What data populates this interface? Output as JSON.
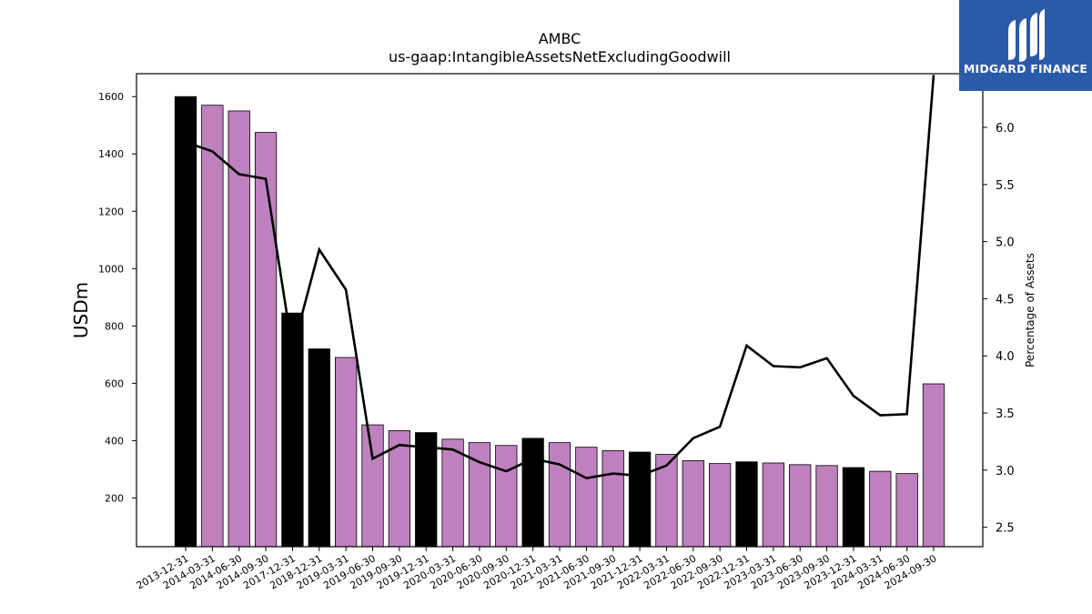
{
  "brand": {
    "name": "MIDGARD FINANCE",
    "bg_color": "#2b5aa8"
  },
  "chart_data": {
    "type": "bar+line",
    "title": "AMBC",
    "subtitle": "us-gaap:IntangibleAssetsNetExcludingGoodwill",
    "ylabel": "USDm",
    "y2label": "Percentage of Assets",
    "ylim": [
      30,
      1680
    ],
    "y2lim": [
      2.33,
      6.47
    ],
    "yticks": [
      200,
      400,
      600,
      800,
      1000,
      1200,
      1400,
      1600
    ],
    "y2ticks": [
      2.5,
      3.0,
      3.5,
      4.0,
      4.5,
      5.0,
      5.5,
      6.0
    ],
    "categories": [
      "2013-12-31",
      "2014-03-31",
      "2014-06-30",
      "2014-09-30",
      "2017-12-31",
      "2018-12-31",
      "2019-03-31",
      "2019-06-30",
      "2019-09-30",
      "2019-12-31",
      "2020-03-31",
      "2020-06-30",
      "2020-09-30",
      "2020-12-31",
      "2021-03-31",
      "2021-06-30",
      "2021-09-30",
      "2021-12-31",
      "2022-03-31",
      "2022-06-30",
      "2022-09-30",
      "2022-12-31",
      "2023-03-31",
      "2023-06-30",
      "2023-09-30",
      "2023-12-31",
      "2024-03-31",
      "2024-06-30",
      "2024-09-30"
    ],
    "series": [
      {
        "type": "bar",
        "values": [
          1600,
          1570,
          1550,
          1475,
          845,
          720,
          690,
          455,
          435,
          428,
          405,
          393,
          383,
          408,
          393,
          377,
          365,
          360,
          352,
          330,
          320,
          326,
          322,
          316,
          313,
          306,
          293,
          285,
          598
        ],
        "annual": [
          true,
          false,
          false,
          false,
          true,
          true,
          false,
          false,
          false,
          true,
          false,
          false,
          false,
          true,
          false,
          false,
          false,
          true,
          false,
          false,
          false,
          true,
          false,
          false,
          false,
          true,
          false,
          false,
          false
        ]
      },
      {
        "type": "line",
        "values": [
          5.87,
          5.79,
          5.59,
          5.55,
          4.05,
          4.93,
          4.58,
          3.1,
          3.22,
          3.2,
          3.18,
          3.07,
          2.99,
          3.1,
          3.05,
          2.93,
          2.97,
          2.95,
          3.04,
          3.28,
          3.38,
          4.09,
          3.91,
          3.9,
          3.98,
          3.65,
          3.48,
          3.49,
          6.46
        ]
      }
    ],
    "colors": {
      "annual_bar": "#000000",
      "quarter_bar": "#bf80bf",
      "line": "#000000"
    },
    "grid": false
  }
}
